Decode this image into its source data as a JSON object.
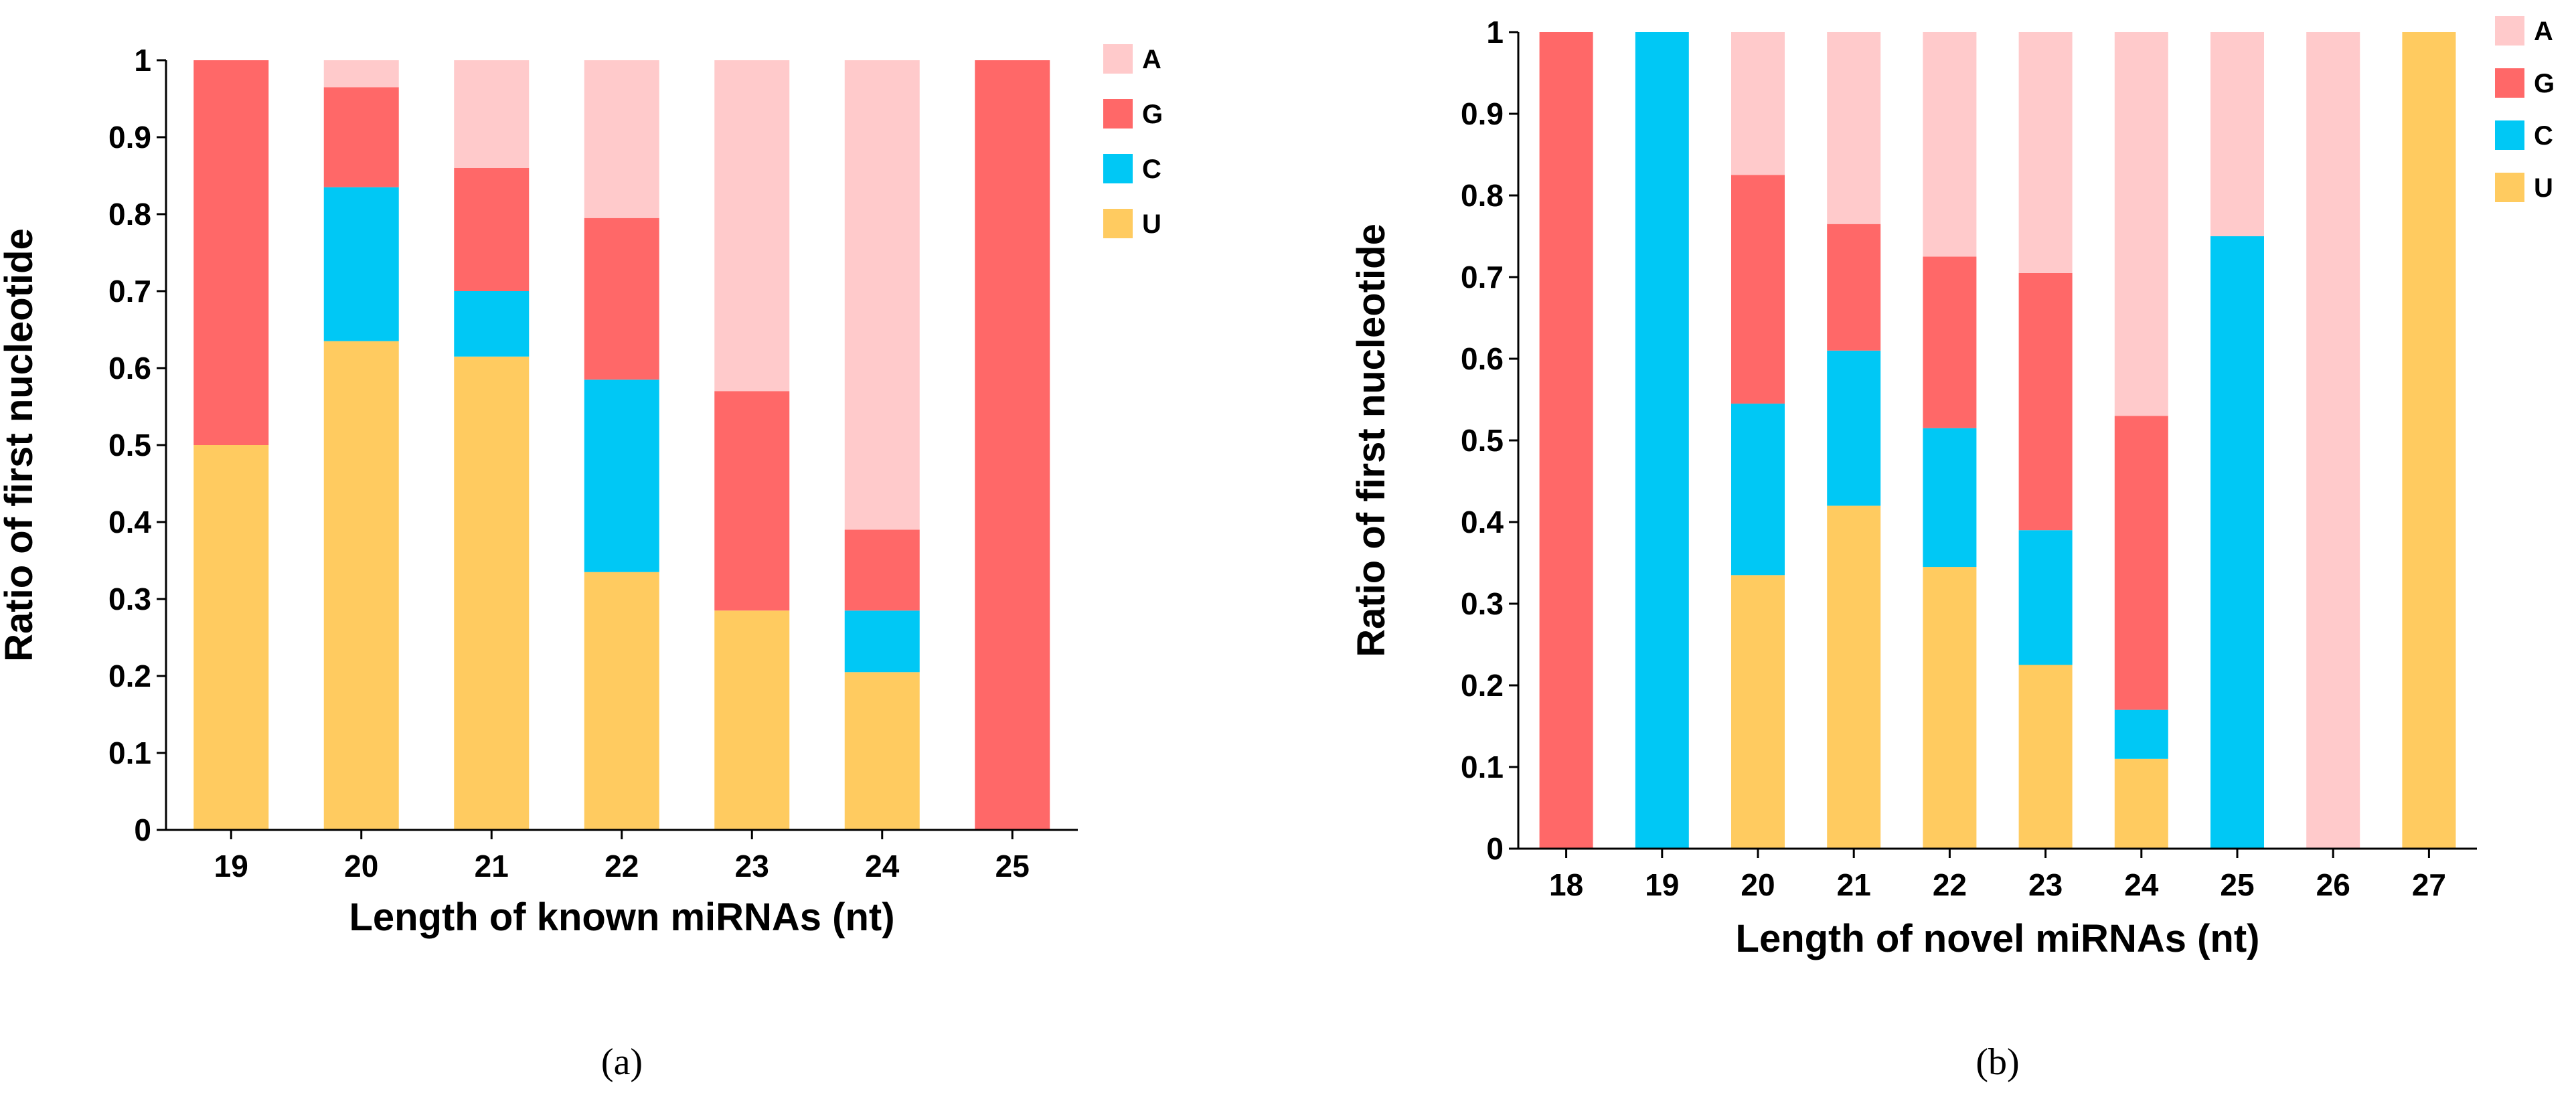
{
  "colors": {
    "A": "#FFCACB",
    "G": "#FF6868",
    "C": "#00C8F5",
    "U": "#FFCB60"
  },
  "chart_data": [
    {
      "id": "a",
      "type": "bar",
      "stacked": true,
      "panel_label": "(a)",
      "xlabel": "Length of known miRNAs (nt)",
      "ylabel": "Ratio of first nucleotide",
      "ylim": [
        0,
        1
      ],
      "yticks": [
        "0",
        "0.1",
        "0.2",
        "0.3",
        "0.4",
        "0.5",
        "0.6",
        "0.7",
        "0.8",
        "0.9",
        "1"
      ],
      "categories": [
        "19",
        "20",
        "21",
        "22",
        "23",
        "24",
        "25"
      ],
      "series": [
        {
          "name": "U",
          "values": [
            0.5,
            0.635,
            0.615,
            0.335,
            0.285,
            0.205,
            0.0
          ]
        },
        {
          "name": "C",
          "values": [
            0.0,
            0.2,
            0.085,
            0.25,
            0.0,
            0.08,
            0.0
          ]
        },
        {
          "name": "G",
          "values": [
            0.5,
            0.13,
            0.16,
            0.21,
            0.285,
            0.105,
            1.0
          ]
        },
        {
          "name": "A",
          "values": [
            0.0,
            0.035,
            0.14,
            0.205,
            0.43,
            0.61,
            0.0
          ]
        }
      ],
      "legend": [
        "A",
        "G",
        "C",
        "U"
      ],
      "legend_position": "top-right"
    },
    {
      "id": "b",
      "type": "bar",
      "stacked": true,
      "panel_label": "(b)",
      "xlabel": "Length of novel miRNAs (nt)",
      "ylabel": "Ratio of first nucleotide",
      "ylim": [
        0,
        1
      ],
      "yticks": [
        "0",
        "0.1",
        "0.2",
        "0.3",
        "0.4",
        "0.5",
        "0.6",
        "0.7",
        "0.8",
        "0.9",
        "1"
      ],
      "categories": [
        "18",
        "19",
        "20",
        "21",
        "22",
        "23",
        "24",
        "25",
        "26",
        "27"
      ],
      "series": [
        {
          "name": "U",
          "values": [
            0.0,
            0.0,
            0.335,
            0.42,
            0.345,
            0.225,
            0.11,
            0.0,
            0.0,
            1.0
          ]
        },
        {
          "name": "C",
          "values": [
            0.0,
            1.0,
            0.21,
            0.19,
            0.17,
            0.165,
            0.06,
            0.75,
            0.0,
            0.0
          ]
        },
        {
          "name": "G",
          "values": [
            1.0,
            0.0,
            0.28,
            0.155,
            0.21,
            0.315,
            0.36,
            0.0,
            0.0,
            0.0
          ]
        },
        {
          "name": "A",
          "values": [
            0.0,
            0.0,
            0.175,
            0.235,
            0.275,
            0.295,
            0.47,
            0.25,
            1.0,
            0.0
          ]
        }
      ],
      "legend": [
        "A",
        "G",
        "C",
        "U"
      ],
      "legend_position": "top-right"
    }
  ]
}
